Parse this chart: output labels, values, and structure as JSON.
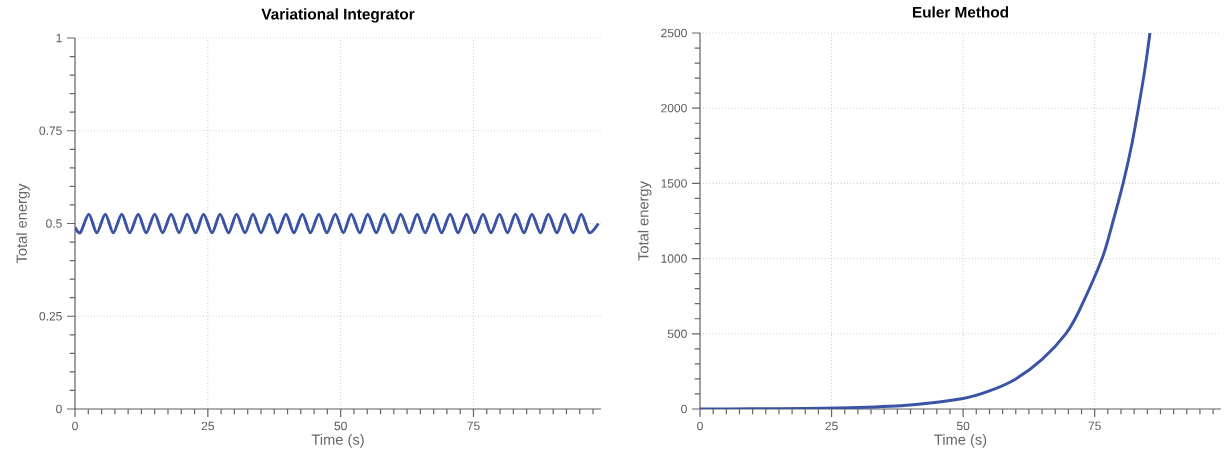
{
  "chart_data": [
    {
      "type": "line",
      "title": "Variational Integrator",
      "xlabel": "Time (s)",
      "ylabel": "Total energy",
      "color": "#3a53a4",
      "grid": true,
      "x": [
        0,
        1.0,
        2.6,
        4.1,
        5.7,
        7.2,
        8.8,
        10.3,
        11.9,
        13.4,
        15.0,
        16.5,
        18.1,
        19.6,
        21.1,
        22.7,
        24.2,
        25.8,
        27.3,
        28.9,
        30.4,
        32.0,
        33.5,
        35.0,
        36.6,
        38.1,
        39.7,
        41.2,
        42.8,
        44.3,
        45.9,
        47.4,
        49.0,
        50.5,
        52.0,
        53.6,
        55.1,
        56.7,
        58.2,
        59.8,
        61.3,
        62.9,
        64.4,
        65.9,
        67.5,
        69.0,
        70.6,
        72.1,
        73.7,
        75.2,
        76.8,
        78.3,
        79.9,
        81.4,
        82.9,
        84.5,
        86.0,
        87.6,
        89.1,
        90.7,
        92.2,
        93.8,
        95.3,
        96.8,
        98.5
      ],
      "values": [
        0.49,
        0.475,
        0.525,
        0.475,
        0.525,
        0.475,
        0.525,
        0.475,
        0.525,
        0.475,
        0.525,
        0.475,
        0.525,
        0.475,
        0.525,
        0.475,
        0.525,
        0.475,
        0.525,
        0.475,
        0.525,
        0.475,
        0.525,
        0.475,
        0.525,
        0.475,
        0.525,
        0.475,
        0.525,
        0.475,
        0.525,
        0.475,
        0.525,
        0.475,
        0.525,
        0.475,
        0.525,
        0.475,
        0.525,
        0.475,
        0.525,
        0.475,
        0.525,
        0.475,
        0.525,
        0.475,
        0.525,
        0.475,
        0.525,
        0.475,
        0.525,
        0.475,
        0.525,
        0.475,
        0.525,
        0.475,
        0.525,
        0.475,
        0.525,
        0.475,
        0.525,
        0.475,
        0.525,
        0.475,
        0.5
      ],
      "xlim": [
        0,
        99
      ],
      "ylim": [
        0,
        1
      ],
      "xticks": [
        0,
        {
          "value": 2.5,
          "label": null
        },
        {
          "value": 5,
          "label": null
        },
        {
          "value": 7.5,
          "label": null
        },
        {
          "value": 10,
          "label": null
        },
        {
          "value": 12.5,
          "label": null
        },
        {
          "value": 15,
          "label": null
        },
        {
          "value": 17.5,
          "label": null
        },
        {
          "value": 20,
          "label": null
        },
        {
          "value": 22.5,
          "label": null
        },
        25,
        {
          "value": 27.5,
          "label": null
        },
        {
          "value": 30,
          "label": null
        },
        {
          "value": 32.5,
          "label": null
        },
        {
          "value": 35,
          "label": null
        },
        {
          "value": 37.5,
          "label": null
        },
        {
          "value": 40,
          "label": null
        },
        {
          "value": 42.5,
          "label": null
        },
        {
          "value": 45,
          "label": null
        },
        {
          "value": 47.5,
          "label": null
        },
        50,
        {
          "value": 52.5,
          "label": null
        },
        {
          "value": 55,
          "label": null
        },
        {
          "value": 57.5,
          "label": null
        },
        {
          "value": 60,
          "label": null
        },
        {
          "value": 62.5,
          "label": null
        },
        {
          "value": 65,
          "label": null
        },
        {
          "value": 67.5,
          "label": null
        },
        {
          "value": 70,
          "label": null
        },
        {
          "value": 72.5,
          "label": null
        },
        75,
        {
          "value": 77.5,
          "label": null
        },
        {
          "value": 80,
          "label": null
        },
        {
          "value": 82.5,
          "label": null
        },
        {
          "value": 85,
          "label": null
        },
        {
          "value": 87.5,
          "label": null
        },
        {
          "value": 90,
          "label": null
        },
        {
          "value": 92.5,
          "label": null
        },
        {
          "value": 95,
          "label": null
        },
        {
          "value": 97.5,
          "label": null
        }
      ],
      "yticks": [
        0,
        {
          "value": 0.05,
          "label": null
        },
        {
          "value": 0.1,
          "label": null
        },
        {
          "value": 0.15,
          "label": null
        },
        {
          "value": 0.2,
          "label": null
        },
        0.25,
        {
          "value": 0.3,
          "label": null
        },
        {
          "value": 0.35,
          "label": null
        },
        {
          "value": 0.4,
          "label": null
        },
        {
          "value": 0.45,
          "label": null
        },
        0.5,
        {
          "value": 0.55,
          "label": null
        },
        {
          "value": 0.6,
          "label": null
        },
        {
          "value": 0.65,
          "label": null
        },
        {
          "value": 0.7,
          "label": null
        },
        0.75,
        {
          "value": 0.8,
          "label": null
        },
        {
          "value": 0.85,
          "label": null
        },
        {
          "value": 0.9,
          "label": null
        },
        {
          "value": 0.95,
          "label": null
        },
        1
      ]
    },
    {
      "type": "line",
      "title": "Euler Method",
      "xlabel": "Time (s)",
      "ylabel": "Total energy",
      "color": "#3a53a4",
      "grid": true,
      "x": [
        0,
        10,
        20,
        30,
        40,
        50,
        55,
        60,
        65,
        69.5,
        72,
        76.4,
        78.5,
        80.4,
        82,
        83.3,
        84.5,
        85.5
      ],
      "values": [
        0.5,
        1.3,
        3.7,
        10,
        27,
        70,
        120,
        200,
        330,
        500,
        650,
        1000,
        1250,
        1500,
        1750,
        2000,
        2250,
        2500
      ],
      "xlim": [
        0,
        99
      ],
      "ylim": [
        0,
        2500
      ],
      "xticks": [
        0,
        {
          "value": 2.5,
          "label": null
        },
        {
          "value": 5,
          "label": null
        },
        {
          "value": 7.5,
          "label": null
        },
        {
          "value": 10,
          "label": null
        },
        {
          "value": 12.5,
          "label": null
        },
        {
          "value": 15,
          "label": null
        },
        {
          "value": 17.5,
          "label": null
        },
        {
          "value": 20,
          "label": null
        },
        {
          "value": 22.5,
          "label": null
        },
        25,
        {
          "value": 27.5,
          "label": null
        },
        {
          "value": 30,
          "label": null
        },
        {
          "value": 32.5,
          "label": null
        },
        {
          "value": 35,
          "label": null
        },
        {
          "value": 37.5,
          "label": null
        },
        {
          "value": 40,
          "label": null
        },
        {
          "value": 42.5,
          "label": null
        },
        {
          "value": 45,
          "label": null
        },
        {
          "value": 47.5,
          "label": null
        },
        50,
        {
          "value": 52.5,
          "label": null
        },
        {
          "value": 55,
          "label": null
        },
        {
          "value": 57.5,
          "label": null
        },
        {
          "value": 60,
          "label": null
        },
        {
          "value": 62.5,
          "label": null
        },
        {
          "value": 65,
          "label": null
        },
        {
          "value": 67.5,
          "label": null
        },
        {
          "value": 70,
          "label": null
        },
        {
          "value": 72.5,
          "label": null
        },
        75,
        {
          "value": 77.5,
          "label": null
        },
        {
          "value": 80,
          "label": null
        },
        {
          "value": 82.5,
          "label": null
        },
        {
          "value": 85,
          "label": null
        },
        {
          "value": 87.5,
          "label": null
        },
        {
          "value": 90,
          "label": null
        },
        {
          "value": 92.5,
          "label": null
        },
        {
          "value": 95,
          "label": null
        },
        {
          "value": 97.5,
          "label": null
        }
      ],
      "yticks": [
        0,
        {
          "value": 100,
          "label": null
        },
        {
          "value": 200,
          "label": null
        },
        {
          "value": 300,
          "label": null
        },
        {
          "value": 400,
          "label": null
        },
        500,
        {
          "value": 600,
          "label": null
        },
        {
          "value": 700,
          "label": null
        },
        {
          "value": 800,
          "label": null
        },
        {
          "value": 900,
          "label": null
        },
        1000,
        {
          "value": 1100,
          "label": null
        },
        {
          "value": 1200,
          "label": null
        },
        {
          "value": 1300,
          "label": null
        },
        {
          "value": 1400,
          "label": null
        },
        1500,
        {
          "value": 1600,
          "label": null
        },
        {
          "value": 1700,
          "label": null
        },
        {
          "value": 1800,
          "label": null
        },
        {
          "value": 1900,
          "label": null
        },
        2000,
        {
          "value": 2100,
          "label": null
        },
        {
          "value": 2200,
          "label": null
        },
        {
          "value": 2300,
          "label": null
        },
        {
          "value": 2400,
          "label": null
        },
        2500
      ]
    }
  ]
}
